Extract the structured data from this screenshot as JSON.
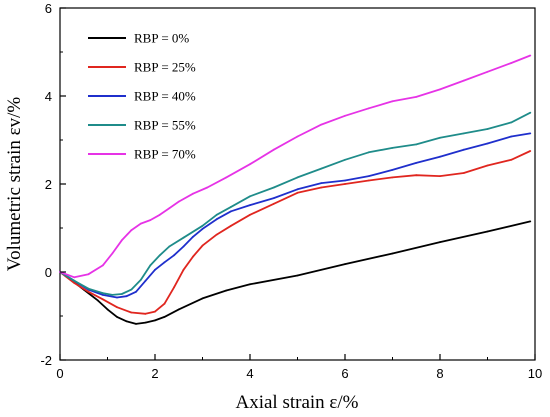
{
  "chart_data": {
    "type": "line",
    "xlabel": "Axial strain ε/%",
    "ylabel": "Volumetric strain  εv/%",
    "xlim": [
      0,
      10
    ],
    "ylim": [
      -2,
      6
    ],
    "xticks": [
      0,
      2,
      4,
      6,
      8,
      10
    ],
    "yticks": [
      -2,
      0,
      2,
      4,
      6
    ],
    "grid": false,
    "legend_position": "top-left",
    "series": [
      {
        "name": "RBP = 0%",
        "color": "#000000",
        "x": [
          0,
          0.2,
          0.5,
          0.8,
          1.0,
          1.2,
          1.4,
          1.6,
          1.8,
          2.0,
          2.2,
          2.5,
          3.0,
          3.5,
          4.0,
          5.0,
          6.0,
          7.0,
          8.0,
          9.0,
          9.9
        ],
        "y": [
          0,
          -0.15,
          -0.4,
          -0.65,
          -0.85,
          -1.02,
          -1.12,
          -1.18,
          -1.15,
          -1.1,
          -1.02,
          -0.85,
          -0.6,
          -0.42,
          -0.28,
          -0.08,
          0.18,
          0.42,
          0.68,
          0.92,
          1.15
        ]
      },
      {
        "name": "RBP = 25%",
        "color": "#e0261f",
        "x": [
          0,
          0.3,
          0.6,
          0.9,
          1.2,
          1.5,
          1.8,
          2.0,
          2.2,
          2.4,
          2.6,
          2.8,
          3.0,
          3.3,
          3.6,
          4.0,
          4.5,
          5.0,
          5.5,
          6.0,
          6.5,
          7.0,
          7.5,
          8.0,
          8.5,
          9.0,
          9.5,
          9.9
        ],
        "y": [
          0,
          -0.25,
          -0.45,
          -0.62,
          -0.8,
          -0.92,
          -0.95,
          -0.9,
          -0.72,
          -0.35,
          0.05,
          0.35,
          0.6,
          0.85,
          1.05,
          1.3,
          1.55,
          1.8,
          1.92,
          2.0,
          2.08,
          2.15,
          2.2,
          2.18,
          2.25,
          2.42,
          2.55,
          2.75
        ]
      },
      {
        "name": "RBP = 40%",
        "color": "#1f2fcc",
        "x": [
          0,
          0.3,
          0.6,
          0.9,
          1.2,
          1.4,
          1.6,
          1.8,
          2.0,
          2.2,
          2.4,
          2.6,
          2.8,
          3.0,
          3.3,
          3.6,
          4.0,
          4.5,
          5.0,
          5.5,
          6.0,
          6.5,
          7.0,
          7.5,
          8.0,
          8.5,
          9.0,
          9.5,
          9.9
        ],
        "y": [
          0,
          -0.2,
          -0.4,
          -0.52,
          -0.58,
          -0.55,
          -0.45,
          -0.2,
          0.05,
          0.22,
          0.38,
          0.58,
          0.8,
          0.98,
          1.2,
          1.38,
          1.52,
          1.68,
          1.88,
          2.02,
          2.08,
          2.18,
          2.32,
          2.48,
          2.62,
          2.78,
          2.92,
          3.08,
          3.15
        ]
      },
      {
        "name": "RBP = 55%",
        "color": "#1f8c8a",
        "x": [
          0,
          0.3,
          0.6,
          0.9,
          1.1,
          1.3,
          1.5,
          1.7,
          1.9,
          2.1,
          2.3,
          2.6,
          3.0,
          3.3,
          3.6,
          4.0,
          4.5,
          5.0,
          5.5,
          6.0,
          6.5,
          7.0,
          7.5,
          8.0,
          8.5,
          9.0,
          9.5,
          9.9
        ],
        "y": [
          0,
          -0.2,
          -0.38,
          -0.48,
          -0.52,
          -0.5,
          -0.4,
          -0.18,
          0.15,
          0.38,
          0.58,
          0.78,
          1.05,
          1.3,
          1.48,
          1.72,
          1.92,
          2.15,
          2.35,
          2.55,
          2.72,
          2.82,
          2.9,
          3.05,
          3.15,
          3.25,
          3.4,
          3.62
        ]
      },
      {
        "name": "RBP = 70%",
        "color": "#e633e6",
        "x": [
          0,
          0.3,
          0.6,
          0.9,
          1.1,
          1.3,
          1.5,
          1.7,
          1.9,
          2.1,
          2.3,
          2.5,
          2.8,
          3.1,
          3.5,
          4.0,
          4.5,
          5.0,
          5.5,
          6.0,
          6.5,
          7.0,
          7.5,
          8.0,
          8.5,
          9.0,
          9.5,
          9.9
        ],
        "y": [
          0,
          -0.12,
          -0.05,
          0.15,
          0.42,
          0.72,
          0.95,
          1.1,
          1.18,
          1.3,
          1.45,
          1.6,
          1.78,
          1.92,
          2.15,
          2.45,
          2.78,
          3.08,
          3.35,
          3.55,
          3.72,
          3.88,
          3.98,
          4.15,
          4.35,
          4.55,
          4.75,
          4.92
        ]
      }
    ]
  }
}
